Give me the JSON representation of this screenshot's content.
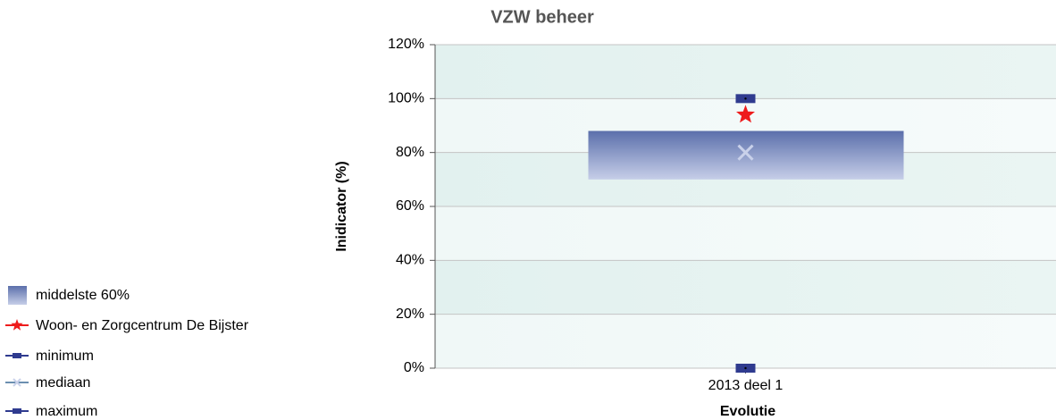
{
  "chart_data": {
    "type": "range-box",
    "title": "VZW beheer",
    "x_label": "Evolutie",
    "y_label": "Inidicator (%)",
    "categories": [
      "2013 deel 1"
    ],
    "series": [
      {
        "name": "middelste 60%",
        "color": "#5b6fab",
        "low": [
          70
        ],
        "high": [
          88
        ]
      },
      {
        "name": "Woon- en Zorgcentrum De Bijster",
        "color": "#ee1c1c",
        "values": [
          94
        ]
      },
      {
        "name": "minimum",
        "color": "#2f3b8f",
        "values": [
          0
        ]
      },
      {
        "name": "mediaan",
        "color": "#c9d1ea",
        "values": [
          80
        ]
      },
      {
        "name": "maximum",
        "color": "#2f3b8f",
        "values": [
          100
        ]
      }
    ],
    "ylim": [
      0,
      120
    ],
    "yticks": [
      {
        "value": 0,
        "label": "0%"
      },
      {
        "value": 20,
        "label": "20%"
      },
      {
        "value": 40,
        "label": "40%"
      },
      {
        "value": 60,
        "label": "60%"
      },
      {
        "value": 80,
        "label": "80%"
      },
      {
        "value": 100,
        "label": "100%"
      },
      {
        "value": 120,
        "label": "120%"
      }
    ],
    "grid": true,
    "legend": "left"
  }
}
